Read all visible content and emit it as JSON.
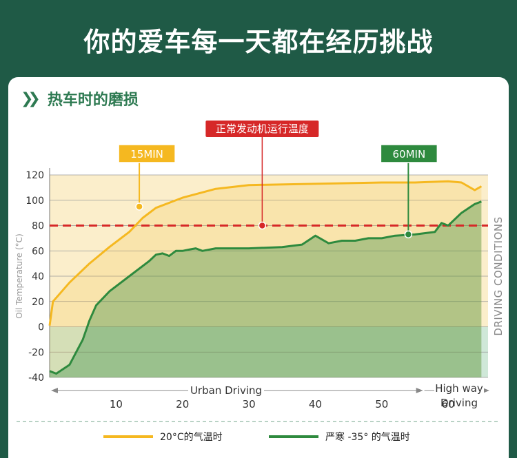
{
  "headline": "你的爱车每一天都在经历挑战",
  "subtitle": "热车时的磨损",
  "colors": {
    "bg": "#1f5a46",
    "warm": "#f5b820",
    "cold": "#2e8a3e",
    "normal": "#d62828"
  },
  "chart_data": {
    "type": "area",
    "ylabel": "Oil Temperature (°C)",
    "right_label": "DRIVING CONDITIONS",
    "ylim": [
      -40,
      120
    ],
    "xlim": [
      0,
      66
    ],
    "y_ticks": [
      "120",
      "100",
      "80",
      "60",
      "40",
      "20",
      "0",
      "-20",
      "-40"
    ],
    "y_tick_values": [
      120,
      100,
      80,
      60,
      40,
      20,
      0,
      -20,
      -40
    ],
    "x_ticks": [
      "10",
      "20",
      "30",
      "40",
      "50",
      "60"
    ],
    "x_tick_values": [
      10,
      20,
      30,
      40,
      50,
      60
    ],
    "grid": true,
    "legend_position": "bottom",
    "normal_operating_temp": 80,
    "normal_label": "正常发动机运行温度",
    "ranges": [
      {
        "label": "Urban Driving",
        "from": 0,
        "to": 56
      },
      {
        "label": "High way Driving",
        "from": 56,
        "to": 66
      }
    ],
    "markers": [
      {
        "label": "15MIN",
        "series": 0,
        "x": 13.5,
        "y": 95
      },
      {
        "label": "60MIN",
        "series": 1,
        "x": 54,
        "y": 73
      }
    ],
    "series": [
      {
        "name": "20°C的气温时",
        "color": "#f5b820",
        "x": [
          0,
          0.5,
          3,
          6,
          9,
          12,
          14,
          16,
          20,
          25,
          30,
          40,
          50,
          55,
          60,
          62,
          64,
          65
        ],
        "y": [
          1,
          20,
          35,
          50,
          63,
          75,
          86,
          94,
          102,
          109,
          112,
          113,
          114,
          114,
          115,
          114,
          108,
          111
        ]
      },
      {
        "name": "严寒 -35° 的气温时",
        "color": "#2e8a3e",
        "x": [
          0,
          1,
          3,
          5,
          6,
          7,
          9,
          12,
          15,
          16,
          17,
          18,
          19,
          20,
          21,
          22,
          23,
          25,
          30,
          35,
          38,
          40,
          42,
          44,
          46,
          48,
          50,
          52,
          55,
          58,
          59,
          60,
          62,
          64,
          65
        ],
        "y": [
          -35,
          -37,
          -30,
          -10,
          5,
          17,
          28,
          40,
          52,
          57,
          58,
          56,
          60,
          60,
          61,
          62,
          60,
          62,
          62,
          63,
          65,
          72,
          66,
          68,
          68,
          70,
          70,
          72,
          73,
          75,
          82,
          80,
          90,
          97,
          99
        ]
      }
    ]
  }
}
